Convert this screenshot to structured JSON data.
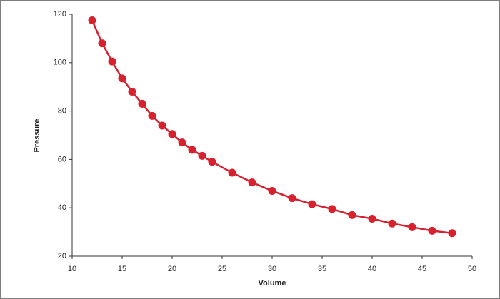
{
  "chart_data": {
    "type": "line",
    "x_label": "Volume",
    "y_label": "Pressure",
    "x": [
      12,
      13,
      14,
      15,
      16,
      17,
      18,
      19,
      20,
      21,
      22,
      23,
      24,
      26,
      28,
      30,
      32,
      34,
      36,
      38,
      40,
      42,
      44,
      46,
      48
    ],
    "values": [
      117.5,
      108,
      100.5,
      93.5,
      88,
      83,
      78,
      74,
      70.5,
      67,
      64,
      61.5,
      59,
      54.5,
      50.5,
      47,
      44,
      41.5,
      39.5,
      37,
      35.5,
      33.5,
      32,
      30.5,
      29.5
    ],
    "color": "#d7212e",
    "xlim": [
      10,
      50
    ],
    "xticks": [
      10,
      15,
      20,
      25,
      30,
      35,
      40,
      45,
      50
    ],
    "ylim": [
      20,
      120
    ],
    "yticks": [
      20,
      40,
      60,
      80,
      100,
      120
    ],
    "markers": true
  }
}
